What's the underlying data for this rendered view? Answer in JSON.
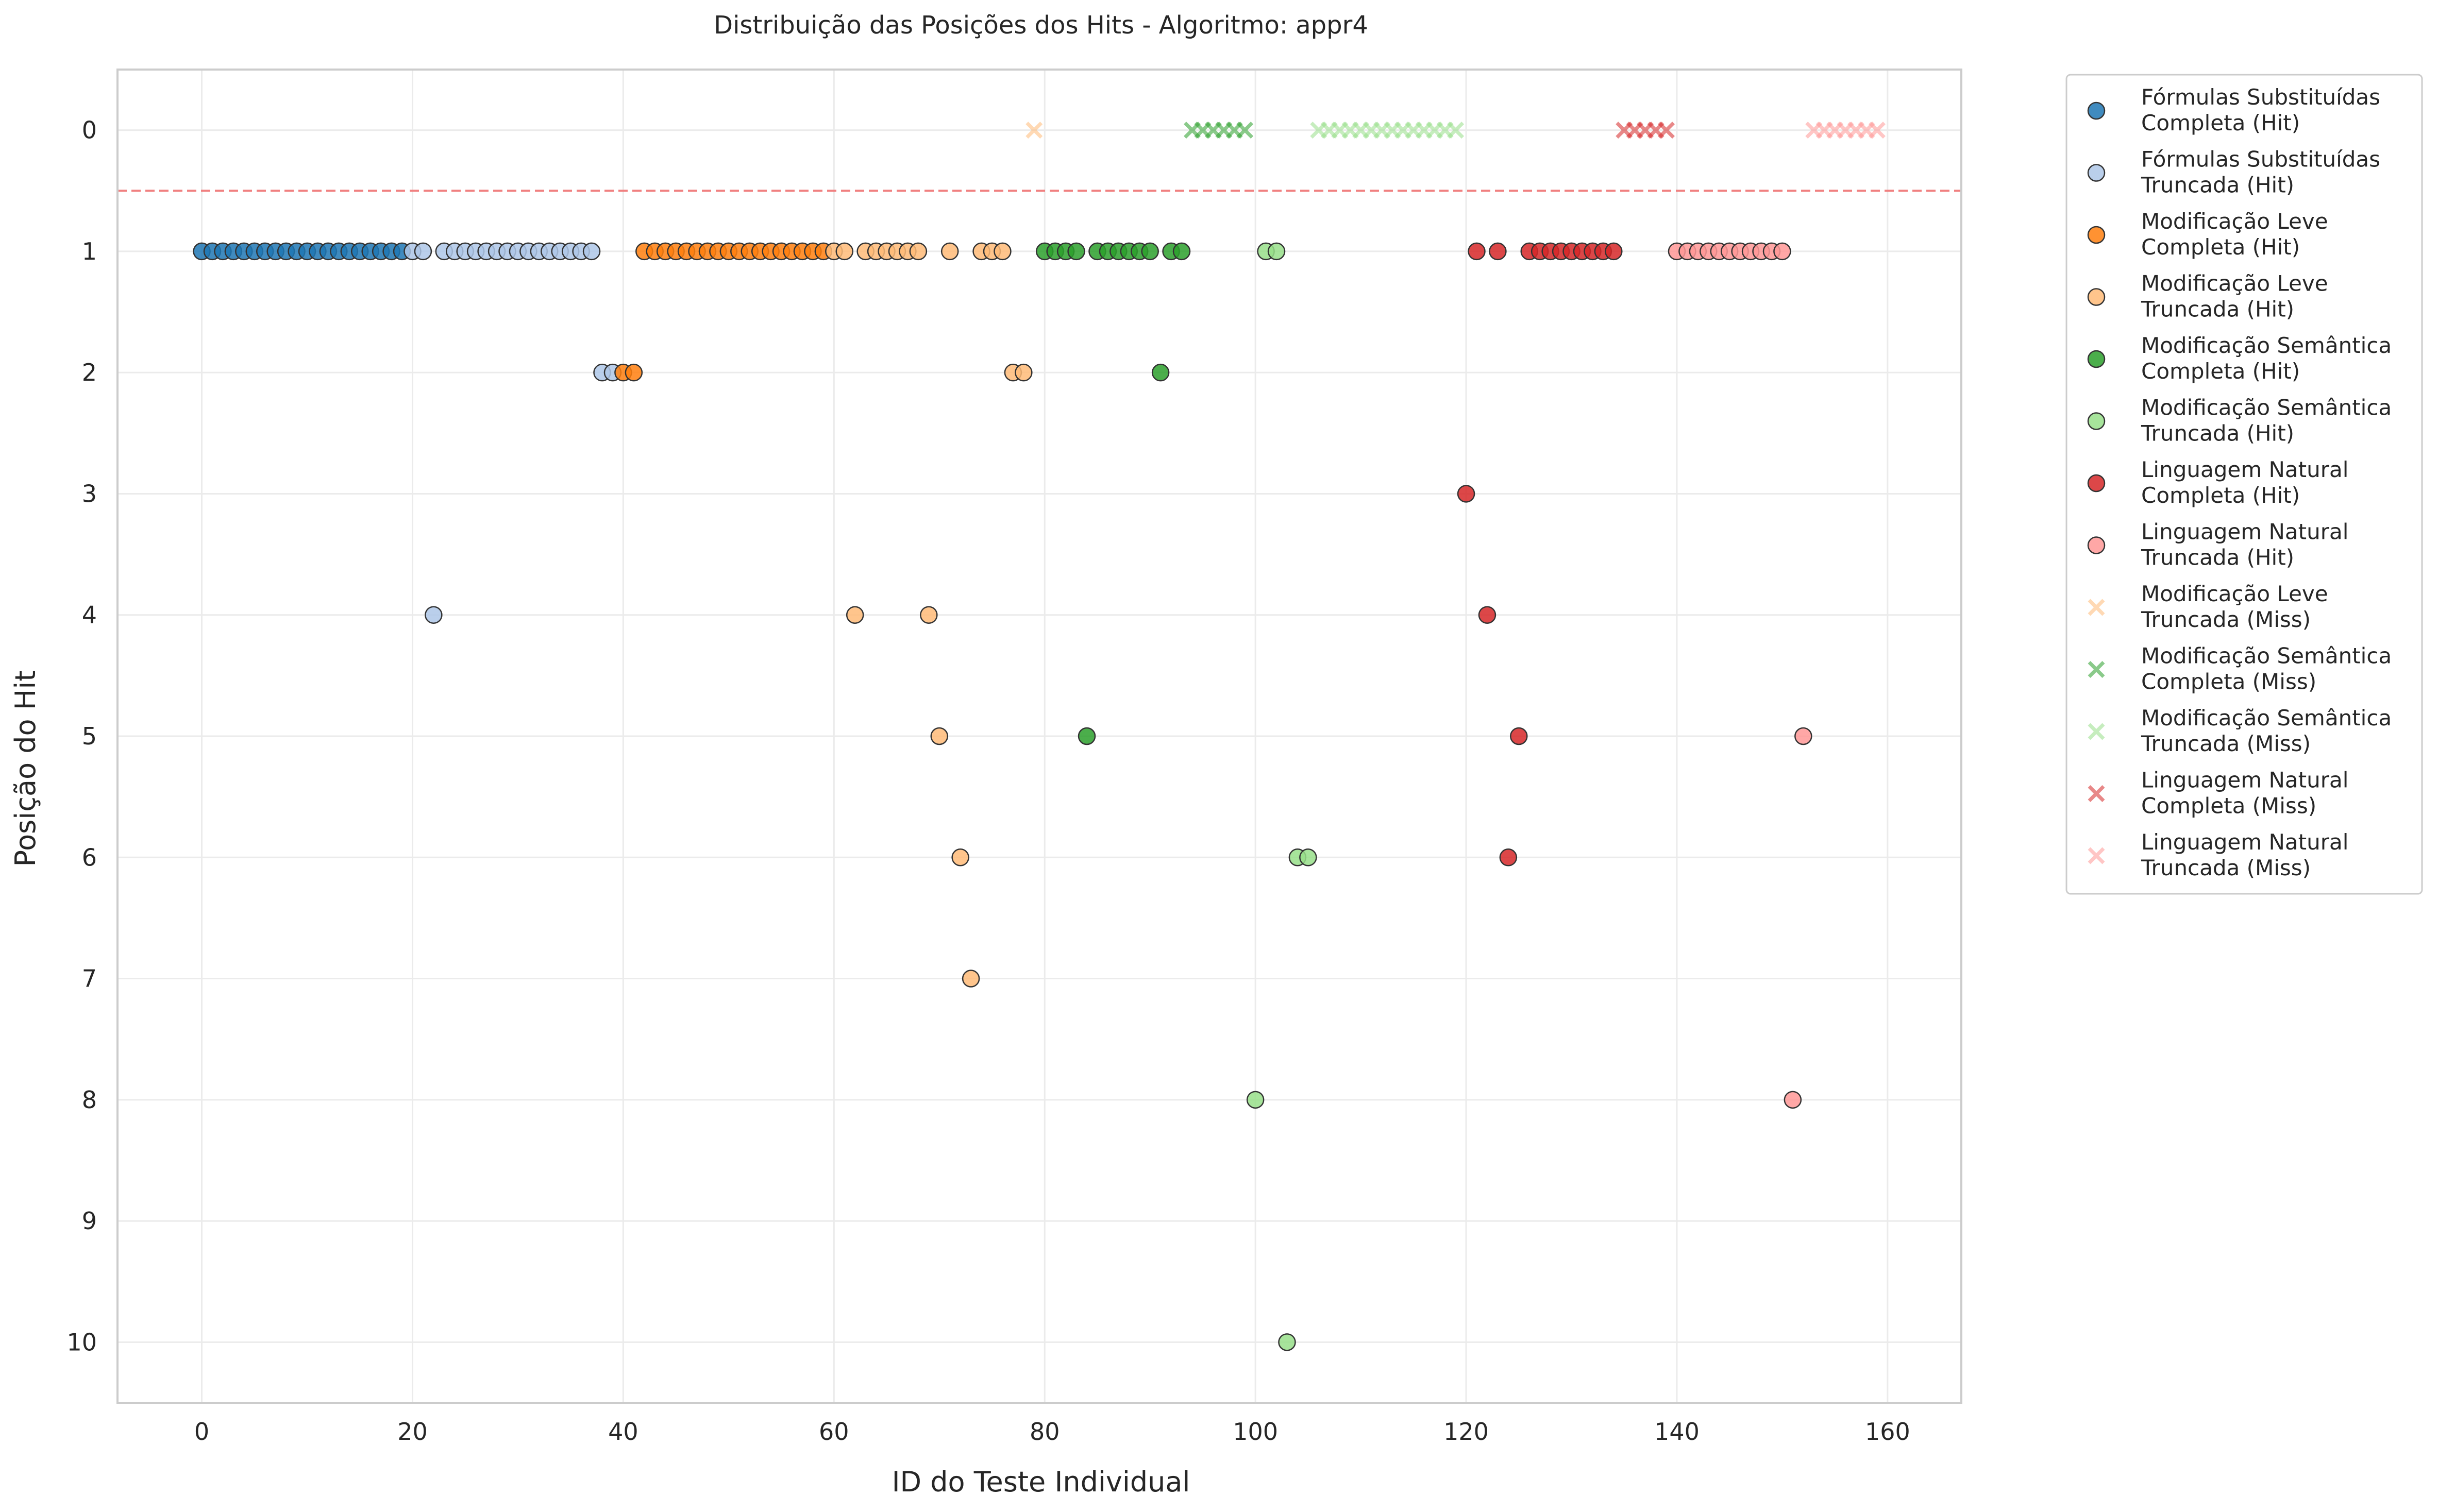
{
  "chart_data": {
    "type": "scatter",
    "title": "Distribuição das Posições dos Hits - Algoritmo: appr4",
    "xlabel": "ID do Teste Individual",
    "ylabel": "Posição do Hit",
    "xlim": [
      -8,
      167
    ],
    "ylim": [
      10.5,
      -0.5
    ],
    "y_inverted": true,
    "xticks": [
      0,
      20,
      40,
      60,
      80,
      100,
      120,
      140,
      160
    ],
    "yticks": [
      0,
      1,
      2,
      3,
      4,
      5,
      6,
      7,
      8,
      9,
      10
    ],
    "grid": true,
    "legend_position": "outside-right",
    "reference_line": {
      "y": 0.5,
      "style": "dashed",
      "color": "#f08080"
    },
    "series": [
      {
        "name": "Fórmulas Substituídas\nCompleta (Hit)",
        "marker": "circle",
        "color": "#1f77b4",
        "points": [
          [
            0,
            1
          ],
          [
            1,
            1
          ],
          [
            2,
            1
          ],
          [
            3,
            1
          ],
          [
            4,
            1
          ],
          [
            5,
            1
          ],
          [
            6,
            1
          ],
          [
            7,
            1
          ],
          [
            8,
            1
          ],
          [
            9,
            1
          ],
          [
            10,
            1
          ],
          [
            11,
            1
          ],
          [
            12,
            1
          ],
          [
            13,
            1
          ],
          [
            14,
            1
          ],
          [
            15,
            1
          ],
          [
            16,
            1
          ],
          [
            17,
            1
          ],
          [
            18,
            1
          ],
          [
            19,
            1
          ]
        ]
      },
      {
        "name": "Fórmulas Substituídas\nTruncada (Hit)",
        "marker": "circle",
        "color": "#aec7e8",
        "points": [
          [
            20,
            1
          ],
          [
            21,
            1
          ],
          [
            22,
            4
          ],
          [
            23,
            1
          ],
          [
            24,
            1
          ],
          [
            25,
            1
          ],
          [
            26,
            1
          ],
          [
            27,
            1
          ],
          [
            28,
            1
          ],
          [
            29,
            1
          ],
          [
            30,
            1
          ],
          [
            31,
            1
          ],
          [
            32,
            1
          ],
          [
            33,
            1
          ],
          [
            34,
            1
          ],
          [
            35,
            1
          ],
          [
            36,
            1
          ],
          [
            37,
            1
          ],
          [
            38,
            2
          ],
          [
            39,
            2
          ]
        ]
      },
      {
        "name": "Modificação Leve\nCompleta (Hit)",
        "marker": "circle",
        "color": "#ff7f0e",
        "points": [
          [
            40,
            2
          ],
          [
            41,
            2
          ],
          [
            42,
            1
          ],
          [
            43,
            1
          ],
          [
            44,
            1
          ],
          [
            45,
            1
          ],
          [
            46,
            1
          ],
          [
            47,
            1
          ],
          [
            48,
            1
          ],
          [
            49,
            1
          ],
          [
            50,
            1
          ],
          [
            51,
            1
          ],
          [
            52,
            1
          ],
          [
            53,
            1
          ],
          [
            54,
            1
          ],
          [
            55,
            1
          ],
          [
            56,
            1
          ],
          [
            57,
            1
          ],
          [
            58,
            1
          ],
          [
            59,
            1
          ]
        ]
      },
      {
        "name": "Modificação Leve\nTruncada (Hit)",
        "marker": "circle",
        "color": "#ffbb78",
        "points": [
          [
            60,
            1
          ],
          [
            61,
            1
          ],
          [
            62,
            4
          ],
          [
            63,
            1
          ],
          [
            64,
            1
          ],
          [
            65,
            1
          ],
          [
            66,
            1
          ],
          [
            67,
            1
          ],
          [
            68,
            1
          ],
          [
            69,
            4
          ],
          [
            70,
            5
          ],
          [
            71,
            1
          ],
          [
            72,
            6
          ],
          [
            73,
            7
          ],
          [
            74,
            1
          ],
          [
            75,
            1
          ],
          [
            76,
            1
          ],
          [
            77,
            2
          ],
          [
            78,
            2
          ]
        ]
      },
      {
        "name": "Modificação Semântica\nCompleta (Hit)",
        "marker": "circle",
        "color": "#2ca02c",
        "points": [
          [
            80,
            1
          ],
          [
            81,
            1
          ],
          [
            82,
            1
          ],
          [
            83,
            1
          ],
          [
            84,
            5
          ],
          [
            85,
            1
          ],
          [
            86,
            1
          ],
          [
            87,
            1
          ],
          [
            88,
            1
          ],
          [
            89,
            1
          ],
          [
            90,
            1
          ],
          [
            91,
            2
          ],
          [
            92,
            1
          ],
          [
            93,
            1
          ]
        ]
      },
      {
        "name": "Modificação Semântica\nTruncada (Hit)",
        "marker": "circle",
        "color": "#98df8a",
        "points": [
          [
            100,
            8
          ],
          [
            101,
            1
          ],
          [
            102,
            1
          ],
          [
            103,
            10
          ],
          [
            104,
            6
          ],
          [
            105,
            6
          ]
        ]
      },
      {
        "name": "Linguagem Natural\nCompleta (Hit)",
        "marker": "circle",
        "color": "#d62728",
        "points": [
          [
            120,
            3
          ],
          [
            121,
            1
          ],
          [
            122,
            4
          ],
          [
            123,
            1
          ],
          [
            124,
            6
          ],
          [
            125,
            5
          ],
          [
            126,
            1
          ],
          [
            127,
            1
          ],
          [
            128,
            1
          ],
          [
            129,
            1
          ],
          [
            130,
            1
          ],
          [
            131,
            1
          ],
          [
            132,
            1
          ],
          [
            133,
            1
          ],
          [
            134,
            1
          ]
        ]
      },
      {
        "name": "Linguagem Natural\nTruncada (Hit)",
        "marker": "circle",
        "color": "#ff9896",
        "points": [
          [
            140,
            1
          ],
          [
            141,
            1
          ],
          [
            142,
            1
          ],
          [
            143,
            1
          ],
          [
            144,
            1
          ],
          [
            145,
            1
          ],
          [
            146,
            1
          ],
          [
            147,
            1
          ],
          [
            148,
            1
          ],
          [
            149,
            1
          ],
          [
            150,
            1
          ],
          [
            151,
            8
          ],
          [
            152,
            5
          ]
        ]
      },
      {
        "name": "Modificação Leve\nTruncada (Miss)",
        "marker": "x",
        "color": "#ffbb78",
        "points": [
          [
            79,
            0
          ]
        ]
      },
      {
        "name": "Modificação Semântica\nCompleta (Miss)",
        "marker": "x",
        "color": "#2ca02c",
        "points": [
          [
            94,
            0
          ],
          [
            95,
            0
          ],
          [
            96,
            0
          ],
          [
            97,
            0
          ],
          [
            98,
            0
          ],
          [
            99,
            0
          ]
        ]
      },
      {
        "name": "Modificação Semântica\nTruncada (Miss)",
        "marker": "x",
        "color": "#98df8a",
        "points": [
          [
            106,
            0
          ],
          [
            107,
            0
          ],
          [
            108,
            0
          ],
          [
            109,
            0
          ],
          [
            110,
            0
          ],
          [
            111,
            0
          ],
          [
            112,
            0
          ],
          [
            113,
            0
          ],
          [
            114,
            0
          ],
          [
            115,
            0
          ],
          [
            116,
            0
          ],
          [
            117,
            0
          ],
          [
            118,
            0
          ],
          [
            119,
            0
          ]
        ]
      },
      {
        "name": "Linguagem Natural\nCompleta (Miss)",
        "marker": "x",
        "color": "#d62728",
        "points": [
          [
            135,
            0
          ],
          [
            136,
            0
          ],
          [
            137,
            0
          ],
          [
            138,
            0
          ],
          [
            139,
            0
          ]
        ]
      },
      {
        "name": "Linguagem Natural\nTruncada (Miss)",
        "marker": "x",
        "color": "#ff9896",
        "points": [
          [
            153,
            0
          ],
          [
            154,
            0
          ],
          [
            155,
            0
          ],
          [
            156,
            0
          ],
          [
            157,
            0
          ],
          [
            158,
            0
          ],
          [
            159,
            0
          ]
        ]
      }
    ]
  }
}
